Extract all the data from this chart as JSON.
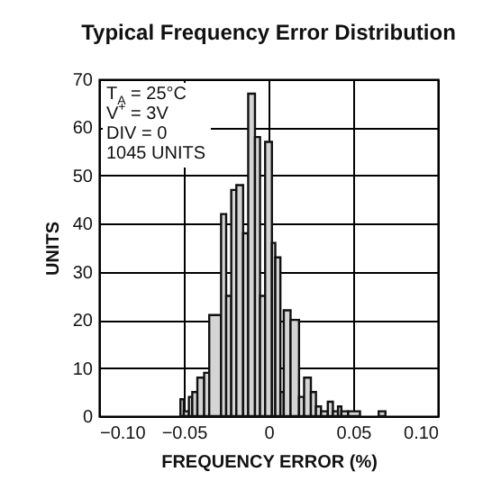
{
  "chart_data": {
    "type": "histogram",
    "title": "Typical Frequency Error Distribution",
    "xlabel": "FREQUENCY ERROR (%)",
    "ylabel": "UNITS",
    "bins": [
      -0.052,
      -0.05,
      -0.047,
      -0.045,
      -0.042,
      -0.038,
      -0.035,
      -0.028,
      -0.025,
      -0.022,
      -0.019,
      -0.015,
      -0.012,
      -0.008,
      -0.005,
      -0.002,
      0.002,
      0.004,
      0.007,
      0.009,
      0.013,
      0.018,
      0.021,
      0.025,
      0.028,
      0.031,
      0.035,
      0.038,
      0.041,
      0.043,
      0.047,
      0.054,
      0.065,
      0.069
    ],
    "values": [
      3.5,
      1,
      4,
      5,
      8,
      9,
      21,
      42,
      25,
      47,
      48,
      38,
      67,
      58,
      25,
      57,
      36,
      33,
      5,
      22,
      20,
      4,
      8,
      5,
      2,
      1,
      3,
      1,
      2,
      1,
      1,
      0,
      1
    ],
    "color": "#d4d4d4",
    "xlim": [
      -0.1,
      0.1
    ],
    "xticks": [
      {
        "value": -0.1,
        "label": "−0.10"
      },
      {
        "value": -0.05,
        "label": "−0.05"
      },
      0,
      0.05,
      {
        "value": 0.1,
        "label": "0.10"
      }
    ],
    "ylim": [
      0,
      70
    ],
    "yticks": [
      0,
      10,
      20,
      30,
      40,
      50,
      60,
      70
    ],
    "grid": true,
    "annotations": [
      "T$_{A}$ = 25°C",
      "V$^{+}$ = 3V",
      "DIV = 0",
      "1045 UNITS"
    ]
  }
}
